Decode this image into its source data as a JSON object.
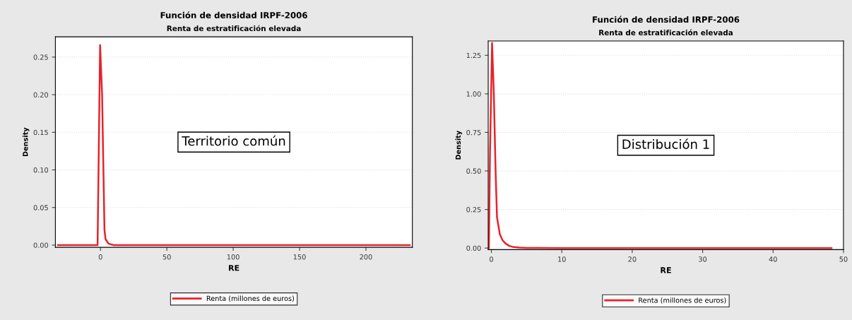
{
  "chart_data": [
    {
      "type": "line",
      "title": "Función de densidad IRPF-2006",
      "subtitle": "Renta de estratificación elevada",
      "xlabel": "RE",
      "ylabel": "Density",
      "series": [
        {
          "name": "Renta (millones de euros)",
          "color": "#e8222a",
          "x": [
            -32,
            -2.2,
            -0.3,
            1.2,
            3,
            3.8,
            6,
            10,
            233
          ],
          "values": [
            0,
            0,
            0.266,
            0.2,
            0.02,
            0.008,
            0.002,
            0,
            0
          ]
        }
      ],
      "xlim": [
        -34,
        235
      ],
      "xticks": [
        0,
        50,
        100,
        150,
        200
      ],
      "ylim": [
        -0.003,
        0.277
      ],
      "yticks": [
        {
          "value": 0,
          "label": "0.00"
        },
        {
          "value": 0.05,
          "label": "0.05"
        },
        {
          "value": 0.1,
          "label": "0.10"
        },
        {
          "value": 0.15,
          "label": "0.15"
        },
        {
          "value": 0.2,
          "label": "0.20"
        },
        {
          "value": 0.25,
          "label": "0.25"
        }
      ],
      "grid": "y",
      "legend": "bottom",
      "line_style": "solid",
      "annotations": [
        "Territorio común"
      ]
    },
    {
      "type": "line",
      "title": "Función de densidad IRPF-2006",
      "subtitle": "Renta de estratificación elevada",
      "xlabel": "RE",
      "ylabel": "Density",
      "series": [
        {
          "name": "Renta (millones de euros)",
          "color": "#e8222a",
          "x": [
            -0.35,
            -0.2,
            0.1,
            0.35,
            0.6,
            0.8,
            1.2,
            1.6,
            2,
            2.5,
            3,
            4,
            5,
            10,
            48.3
          ],
          "values": [
            0,
            0.6,
            1.33,
            1.0,
            0.5,
            0.2,
            0.09,
            0.05,
            0.03,
            0.015,
            0.008,
            0.003,
            0.001,
            0,
            0
          ]
        }
      ],
      "xlim": [
        -0.45,
        50
      ],
      "xticks": [
        0,
        10,
        20,
        30,
        40,
        50
      ],
      "ylim": [
        -0.01,
        1.343
      ],
      "yticks": [
        {
          "value": 0,
          "label": "0.00"
        },
        {
          "value": 0.25,
          "label": "0.25"
        },
        {
          "value": 0.5,
          "label": "0.50"
        },
        {
          "value": 0.75,
          "label": "0.75"
        },
        {
          "value": 1.0,
          "label": "1.00"
        },
        {
          "value": 1.25,
          "label": "1.25"
        }
      ],
      "grid": "y",
      "legend": "bottom",
      "line_style": "solid",
      "annotations": [
        "Distribución 1"
      ]
    }
  ]
}
